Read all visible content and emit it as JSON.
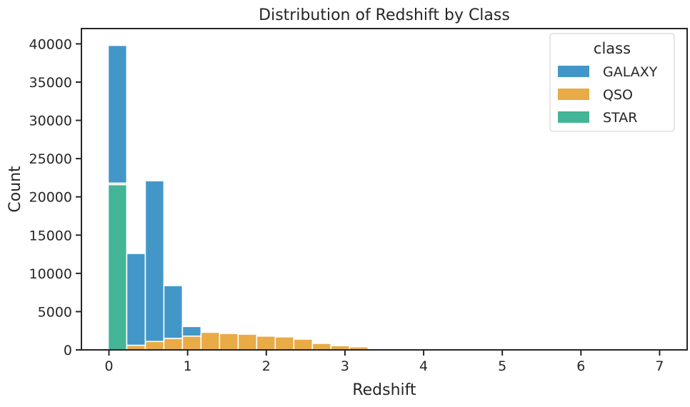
{
  "chart_data": {
    "type": "bar",
    "stacked": true,
    "title": "Distribution of Redshift by Class",
    "xlabel": "Redshift",
    "ylabel": "Count",
    "xlim": [
      -0.35,
      7.35
    ],
    "ylim": [
      0,
      42000
    ],
    "xticks": [
      "0",
      "1",
      "2",
      "3",
      "4",
      "5",
      "6",
      "7"
    ],
    "xtick_values": [
      0,
      1,
      2,
      3,
      4,
      5,
      6,
      7
    ],
    "yticks": [
      "0",
      "5000",
      "10000",
      "15000",
      "20000",
      "25000",
      "30000",
      "35000",
      "40000"
    ],
    "ytick_values": [
      0,
      5000,
      10000,
      15000,
      20000,
      25000,
      30000,
      35000,
      40000
    ],
    "grid": false,
    "legend_position": "top-right",
    "legend_title": "class",
    "bin_width": 0.236,
    "bin_starts": [
      -0.01,
      0.226,
      0.462,
      0.698,
      0.934,
      1.17,
      1.406,
      1.642,
      1.878,
      2.114,
      2.35,
      2.586,
      2.822,
      3.058
    ],
    "series": [
      {
        "name": "STAR",
        "color": "#44b596",
        "values": [
          21600,
          0,
          0,
          0,
          0,
          0,
          0,
          0,
          0,
          0,
          0,
          0,
          0,
          0
        ]
      },
      {
        "name": "QSO",
        "color": "#e8ab46",
        "values": [
          200,
          600,
          1100,
          1500,
          1800,
          2300,
          2150,
          2050,
          1800,
          1700,
          1400,
          850,
          550,
          400
        ]
      },
      {
        "name": "GALAXY",
        "color": "#4397c8",
        "values": [
          18000,
          12000,
          21000,
          6900,
          1250,
          0,
          0,
          0,
          0,
          0,
          0,
          0,
          0,
          0
        ]
      }
    ],
    "legend_items": [
      {
        "name": "GALAXY",
        "color": "#4397c8"
      },
      {
        "name": "QSO",
        "color": "#e8ab46"
      },
      {
        "name": "STAR",
        "color": "#44b596"
      }
    ]
  }
}
